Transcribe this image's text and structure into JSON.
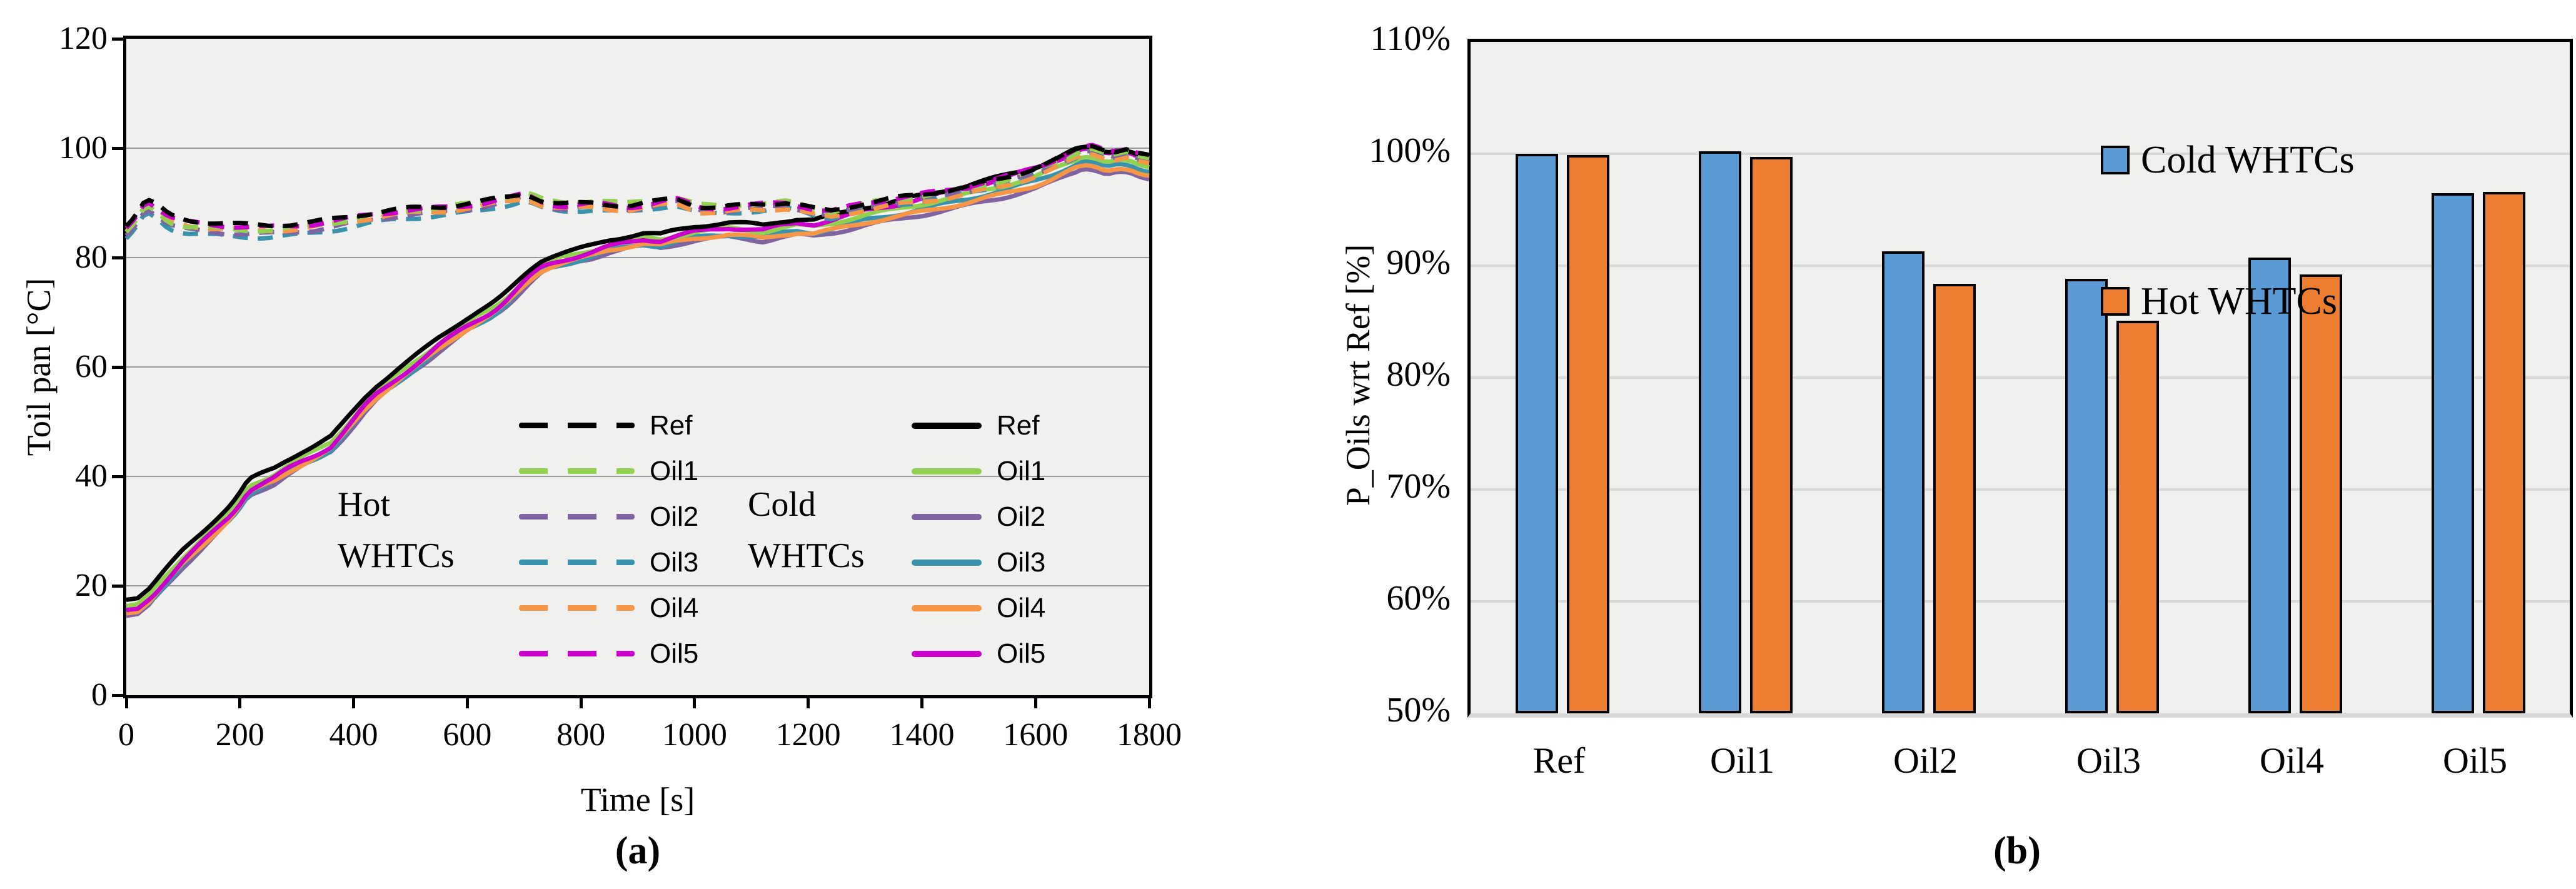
{
  "figure": {
    "caption_a": "(a)",
    "caption_b": "(b)"
  },
  "colors": {
    "plot_bg": "#f0f0ee",
    "grid_a": "#9b9b9b",
    "grid_b": "#d9d9d9",
    "axis": "#000000",
    "ref": "#000000",
    "oil1": "#92d050",
    "oil2": "#8064a2",
    "oil3": "#3a93ad",
    "oil4": "#f79646",
    "oil5": "#cc00cc",
    "bar_cold": "#5b9bd5",
    "bar_hot": "#ed7d31"
  },
  "chart_data": [
    {
      "type": "line",
      "panel": "a",
      "xlabel": "Time [s]",
      "ylabel": "Toil pan [°C]",
      "xlim": [
        0,
        1800
      ],
      "ylim": [
        0,
        120
      ],
      "xticks": [
        0,
        200,
        400,
        600,
        800,
        1000,
        1200,
        1400,
        1600,
        1800
      ],
      "yticks": [
        0,
        20,
        40,
        60,
        80,
        100,
        120
      ],
      "grid": "horizontal-light",
      "annotations": [
        {
          "id": "hot-note",
          "lines": [
            "Hot",
            "WHTCs"
          ]
        },
        {
          "id": "cold-note",
          "lines": [
            "Cold",
            "WHTCs"
          ]
        }
      ],
      "offset_nodes": [
        100,
        850,
        1600
      ],
      "groups": [
        {
          "name": "Cold WHTCs",
          "style": "solid",
          "base_anchors": [
            [
              0,
              17.5
            ],
            [
              20,
              17.8
            ],
            [
              40,
              19.5
            ],
            [
              70,
              23
            ],
            [
              100,
              26.5
            ],
            [
              130,
              29.5
            ],
            [
              160,
              32.5
            ],
            [
              185,
              35
            ],
            [
              200,
              37
            ],
            [
              215,
              39.3
            ],
            [
              235,
              40.3
            ],
            [
              260,
              41.5
            ],
            [
              285,
              43.2
            ],
            [
              310,
              44.6
            ],
            [
              335,
              45.8
            ],
            [
              360,
              47.2
            ],
            [
              380,
              49.5
            ],
            [
              400,
              52
            ],
            [
              420,
              54.5
            ],
            [
              440,
              56.6
            ],
            [
              460,
              58.2
            ],
            [
              480,
              59.8
            ],
            [
              500,
              61.3
            ],
            [
              525,
              63.3
            ],
            [
              550,
              65.4
            ],
            [
              575,
              67.3
            ],
            [
              600,
              69
            ],
            [
              620,
              70.2
            ],
            [
              645,
              71.6
            ],
            [
              665,
              73.2
            ],
            [
              685,
              75.2
            ],
            [
              700,
              76.8
            ],
            [
              715,
              78.3
            ],
            [
              730,
              79.5
            ],
            [
              745,
              80.2
            ],
            [
              765,
              80.8
            ],
            [
              790,
              81.4
            ],
            [
              820,
              82.2
            ],
            [
              850,
              83.2
            ],
            [
              880,
              83.9
            ],
            [
              910,
              84.5
            ],
            [
              940,
              84.2
            ],
            [
              970,
              85
            ],
            [
              1000,
              85.7
            ],
            [
              1030,
              86.1
            ],
            [
              1060,
              86.4
            ],
            [
              1090,
              86.2
            ],
            [
              1120,
              85.9
            ],
            [
              1150,
              86.6
            ],
            [
              1180,
              87.1
            ],
            [
              1210,
              86.9
            ],
            [
              1240,
              87.6
            ],
            [
              1270,
              88.4
            ],
            [
              1300,
              89.2
            ],
            [
              1330,
              89.8
            ],
            [
              1360,
              90.4
            ],
            [
              1390,
              91.1
            ],
            [
              1420,
              91.8
            ],
            [
              1450,
              92.5
            ],
            [
              1480,
              93.2
            ],
            [
              1510,
              94
            ],
            [
              1540,
              94.8
            ],
            [
              1570,
              95.7
            ],
            [
              1600,
              96.6
            ],
            [
              1630,
              97.8
            ],
            [
              1660,
              99.2
            ],
            [
              1685,
              100.3
            ],
            [
              1705,
              100
            ],
            [
              1725,
              99.2
            ],
            [
              1745,
              99.7
            ],
            [
              1765,
              99.5
            ],
            [
              1785,
              98.6
            ],
            [
              1800,
              98.3
            ]
          ],
          "series": [
            {
              "label": "Oil2",
              "color_key": "oil2",
              "offsets": [
                -3.0,
                -2.2,
                -4.0
              ]
            },
            {
              "label": "Oil3",
              "color_key": "oil3",
              "offsets": [
                -2.6,
                -2.0,
                -2.6
              ]
            },
            {
              "label": "Oil4",
              "color_key": "oil4",
              "offsets": [
                -2.5,
                -1.8,
                -3.4
              ]
            },
            {
              "label": "Oil1",
              "color_key": "oil1",
              "offsets": [
                -1.2,
                -0.8,
                -1.8
              ]
            },
            {
              "label": "Oil5",
              "color_key": "oil5",
              "offsets": [
                -2.0,
                -1.2,
                -0.3
              ]
            },
            {
              "label": "Ref",
              "color_key": "ref",
              "offsets": [
                0,
                0,
                0
              ]
            }
          ],
          "legend_order": [
            "Ref",
            "Oil1",
            "Oil2",
            "Oil3",
            "Oil4",
            "Oil5"
          ]
        },
        {
          "name": "Hot WHTCs",
          "style": "dashed",
          "base_anchors": [
            [
              0,
              85.8
            ],
            [
              15,
              87.5
            ],
            [
              35,
              90.8
            ],
            [
              55,
              89.5
            ],
            [
              75,
              87.8
            ],
            [
              105,
              86.9
            ],
            [
              140,
              86.5
            ],
            [
              175,
              86.2
            ],
            [
              210,
              86
            ],
            [
              250,
              85.9
            ],
            [
              290,
              86.1
            ],
            [
              330,
              86.5
            ],
            [
              370,
              87.1
            ],
            [
              410,
              87.8
            ],
            [
              440,
              88.3
            ],
            [
              470,
              88.7
            ],
            [
              500,
              89
            ],
            [
              530,
              89.2
            ],
            [
              560,
              89.4
            ],
            [
              590,
              89.7
            ],
            [
              620,
              90.1
            ],
            [
              650,
              90.7
            ],
            [
              680,
              91.3
            ],
            [
              700,
              91.8
            ],
            [
              715,
              91.2
            ],
            [
              735,
              90.2
            ],
            [
              765,
              89.7
            ],
            [
              795,
              89.9
            ],
            [
              825,
              90.1
            ],
            [
              855,
              89.7
            ],
            [
              885,
              89.4
            ],
            [
              915,
              89.9
            ],
            [
              945,
              90.5
            ],
            [
              965,
              90.9
            ],
            [
              985,
              90.2
            ],
            [
              1010,
              89.3
            ],
            [
              1040,
              89.1
            ],
            [
              1070,
              89.4
            ],
            [
              1100,
              89.7
            ],
            [
              1130,
              89.9
            ],
            [
              1160,
              90.1
            ],
            [
              1190,
              89.5
            ],
            [
              1215,
              88.8
            ],
            [
              1240,
              88.5
            ],
            [
              1265,
              89.1
            ],
            [
              1295,
              89.9
            ],
            [
              1325,
              90.4
            ],
            [
              1355,
              90.9
            ],
            [
              1385,
              91.3
            ],
            [
              1415,
              91.8
            ],
            [
              1445,
              92.3
            ],
            [
              1475,
              92.9
            ],
            [
              1505,
              93.6
            ],
            [
              1535,
              94.3
            ],
            [
              1565,
              95.2
            ],
            [
              1595,
              96.2
            ],
            [
              1625,
              97.4
            ],
            [
              1655,
              98.8
            ],
            [
              1680,
              100.1
            ],
            [
              1700,
              100.4
            ],
            [
              1720,
              99.7
            ],
            [
              1740,
              99.3
            ],
            [
              1760,
              99.8
            ],
            [
              1780,
              99.1
            ],
            [
              1800,
              98.7
            ]
          ],
          "series": [
            {
              "label": "Oil3",
              "color_key": "oil3",
              "offsets": [
                -2.4,
                -1.2,
                -1.2
              ]
            },
            {
              "label": "Oil2",
              "color_key": "oil2",
              "offsets": [
                -1.8,
                -0.6,
                -0.9
              ]
            },
            {
              "label": "Oil4",
              "color_key": "oil4",
              "offsets": [
                -1.0,
                -0.8,
                -1.5
              ]
            },
            {
              "label": "Oil1",
              "color_key": "oil1",
              "offsets": [
                -1.2,
                0.5,
                -0.5
              ]
            },
            {
              "label": "Oil5",
              "color_key": "oil5",
              "offsets": [
                -0.4,
                -0.2,
                0.1
              ]
            },
            {
              "label": "Ref",
              "color_key": "ref",
              "offsets": [
                0,
                0,
                0
              ]
            }
          ],
          "legend_order": [
            "Ref",
            "Oil1",
            "Oil2",
            "Oil3",
            "Oil4",
            "Oil5"
          ]
        }
      ]
    },
    {
      "type": "bar",
      "panel": "b",
      "categories": [
        "Ref",
        "Oil1",
        "Oil2",
        "Oil3",
        "Oil4",
        "Oil5"
      ],
      "series": [
        {
          "name": "Cold WHTCs",
          "color_key": "bar_cold",
          "values": [
            100.0,
            100.2,
            91.3,
            88.8,
            90.7,
            96.5
          ]
        },
        {
          "name": "Hot WHTCs",
          "color_key": "bar_hot",
          "values": [
            99.9,
            99.7,
            88.4,
            85.1,
            89.2,
            96.6
          ]
        }
      ],
      "title": "",
      "xlabel": "",
      "ylabel": "P_Oils wrt Ref [%]",
      "ylim": [
        50,
        110
      ],
      "yticklabels": [
        "110%",
        "100%",
        "90%",
        "80%",
        "70%",
        "60%",
        "50%"
      ],
      "grid": "horizontal-light",
      "legend_position": "top-right"
    }
  ]
}
